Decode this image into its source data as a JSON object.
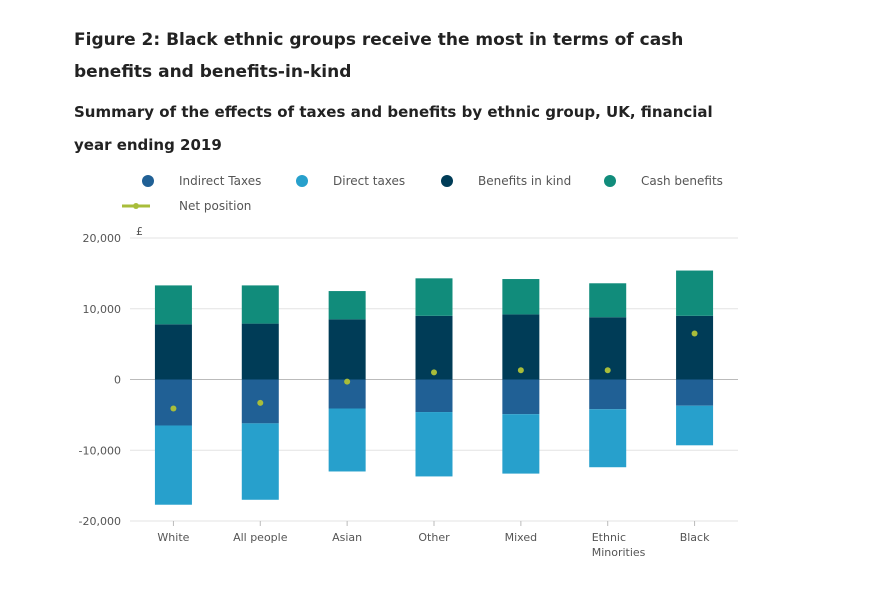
{
  "header": {
    "title": "Figure 2: Black ethnic groups receive the most in terms of cash benefits and benefits-in-kind",
    "subtitle": "Summary of the effects of taxes and benefits by ethnic group, UK, financial year ending 2019"
  },
  "chart_data": {
    "type": "bar",
    "stacked": true,
    "title": "Figure 2: Black ethnic groups receive the most in terms of cash benefits and benefits-in-kind",
    "subtitle": "Summary of the effects of taxes and benefits by ethnic group, UK, financial year ending 2019",
    "ylabel": "£",
    "xlabel": "",
    "ylim": [
      -20000,
      20000
    ],
    "yticks": [
      20000,
      10000,
      0,
      -10000,
      -20000
    ],
    "ytick_labels": [
      "20,000",
      "10,000",
      "0",
      "-10,000",
      "-20,000"
    ],
    "grid": true,
    "legend_position": "top",
    "categories": [
      "White",
      "All people",
      "Asian",
      "Other",
      "Mixed",
      "Ethnic Minorities",
      "Black"
    ],
    "category_lines": [
      [
        "White"
      ],
      [
        "All people"
      ],
      [
        "Asian"
      ],
      [
        "Other"
      ],
      [
        "Mixed"
      ],
      [
        "Ethnic",
        "Minorities"
      ],
      [
        "Black"
      ]
    ],
    "series": [
      {
        "name": "Indirect Taxes",
        "color": "#206095",
        "kind": "bar",
        "values": [
          -6500,
          -6200,
          -4100,
          -4600,
          -4900,
          -4200,
          -3700
        ]
      },
      {
        "name": "Direct taxes",
        "color": "#27a0cc",
        "kind": "bar",
        "values": [
          -11200,
          -10800,
          -8900,
          -9100,
          -8400,
          -8200,
          -5600
        ]
      },
      {
        "name": "Benefits in kind",
        "color": "#003c57",
        "kind": "bar",
        "values": [
          7800,
          7900,
          8500,
          9000,
          9200,
          8800,
          9000
        ]
      },
      {
        "name": "Cash benefits",
        "color": "#118c7b",
        "kind": "bar",
        "values": [
          5500,
          5400,
          4000,
          5300,
          5000,
          4800,
          6400
        ]
      },
      {
        "name": "Net position",
        "color": "#a8bd3a",
        "kind": "line",
        "values": [
          -4100,
          -3300,
          -300,
          1000,
          1300,
          1300,
          6500
        ]
      }
    ]
  }
}
